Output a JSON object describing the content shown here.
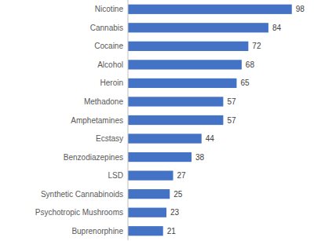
{
  "chart_data": {
    "type": "bar",
    "orientation": "horizontal",
    "categories": [
      "Nicotine",
      "Cannabis",
      "Cocaine",
      "Alcohol",
      "Heroin",
      "Methadone",
      "Amphetamines",
      "Ecstasy",
      "Benzodiazepines",
      "LSD",
      "Synthetic Cannabinoids",
      "Psychotropic Mushrooms",
      "Buprenorphine"
    ],
    "values": [
      98,
      84,
      72,
      68,
      65,
      57,
      57,
      44,
      38,
      27,
      25,
      23,
      21
    ],
    "color": "#4472c4",
    "xlim": [
      0,
      100
    ],
    "data_labels": true,
    "tick_labels": "y",
    "grid": false
  }
}
